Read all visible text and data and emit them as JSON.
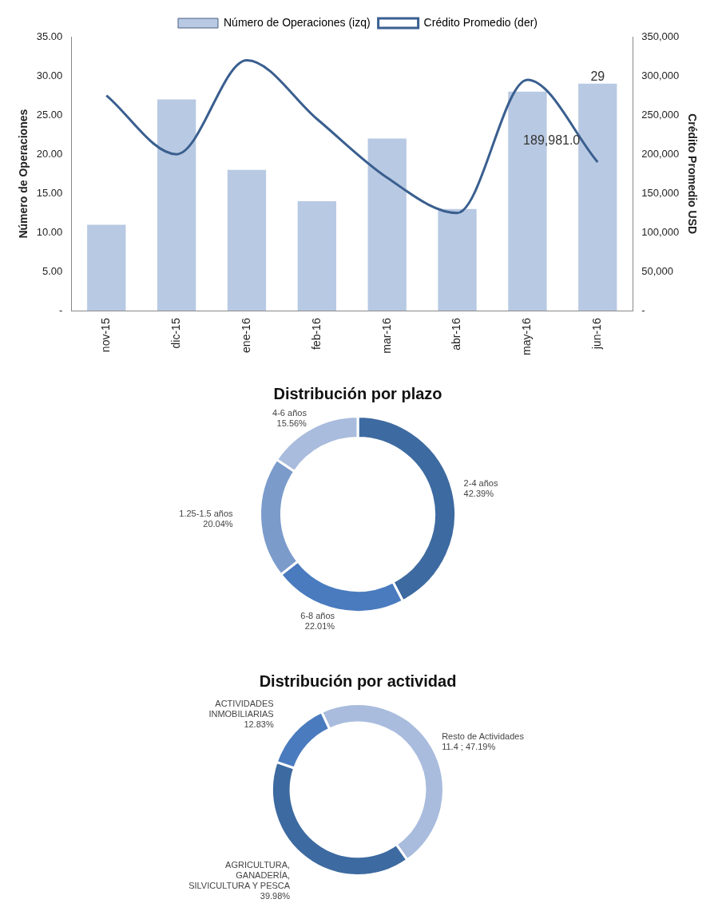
{
  "chart_data": [
    {
      "type": "bar",
      "categories": [
        "nov-15",
        "dic-15",
        "ene-16",
        "feb-16",
        "mar-16",
        "abr-16",
        "may-16",
        "jun-16"
      ],
      "series": [
        {
          "name": "Número de Operaciones (izq)",
          "type": "bar",
          "color": "#b8c9e3",
          "values": [
            11,
            27,
            18,
            14,
            22,
            13,
            28,
            29
          ],
          "value_labels": [
            null,
            null,
            null,
            null,
            null,
            null,
            null,
            "29"
          ]
        },
        {
          "name": "Crédito Promedio (der)",
          "type": "line",
          "axis": "y2",
          "color": "#3a5f8f",
          "values": [
            275000,
            200000,
            320000,
            245000,
            170000,
            125000,
            295000,
            189981
          ],
          "value_labels": [
            null,
            null,
            null,
            null,
            null,
            null,
            null,
            "189,981.0"
          ]
        }
      ],
      "ylabel": "Número de Operaciones",
      "y2label": "Crédito Promedio USD",
      "ylim": [
        0,
        35
      ],
      "yticks": [
        {
          "value": 0,
          "label": "-"
        },
        {
          "value": 5,
          "label": "5.00"
        },
        {
          "value": 10,
          "label": "10.00"
        },
        {
          "value": 15,
          "label": "15.00"
        },
        {
          "value": 20,
          "label": "20.00"
        },
        {
          "value": 25,
          "label": "25.00"
        },
        {
          "value": 30,
          "label": "30.00"
        },
        {
          "value": 35,
          "label": "35.00"
        }
      ],
      "y2lim": [
        0,
        350000
      ],
      "y2ticks": [
        {
          "value": 0,
          "label": "-"
        },
        {
          "value": 50000,
          "label": "50,000"
        },
        {
          "value": 100000,
          "label": "100,000"
        },
        {
          "value": 150000,
          "label": "150,000"
        },
        {
          "value": 200000,
          "label": "200,000"
        },
        {
          "value": 250000,
          "label": "250,000"
        },
        {
          "value": 300000,
          "label": "300,000"
        },
        {
          "value": 350000,
          "label": "350,000"
        }
      ],
      "legend": "top",
      "marker": "none",
      "grid": false
    },
    {
      "type": "donut",
      "title": "Distribución por plazo",
      "categories": [
        "2-4 años",
        "6-8 años",
        "1.25-1.5 años",
        "4-6 años"
      ],
      "values": [
        42.39,
        22.01,
        20.04,
        15.56
      ],
      "colors": [
        "#3d6aa0",
        "#4a7bbf",
        "#7b9bcb",
        "#a9bcdd"
      ],
      "value_labels": [
        "42.39%",
        "22.01%",
        "20.04%",
        "15.56%"
      ],
      "legend": false
    },
    {
      "type": "donut",
      "title": "Distribución por actividad",
      "categories": [
        "Resto de Actividades",
        "AGRICULTURA, GANADERÍA, SILVICULTURA Y PESCA",
        "ACTIVIDADES INMOBILIARIAS"
      ],
      "values": [
        47.19,
        39.98,
        12.83
      ],
      "colors": [
        "#a9bcdd",
        "#3d6aa0",
        "#4a7bbf"
      ],
      "value_labels": [
        "11.4 ; 47.19%",
        "39.98%",
        "12.83%"
      ],
      "legend": false
    }
  ]
}
